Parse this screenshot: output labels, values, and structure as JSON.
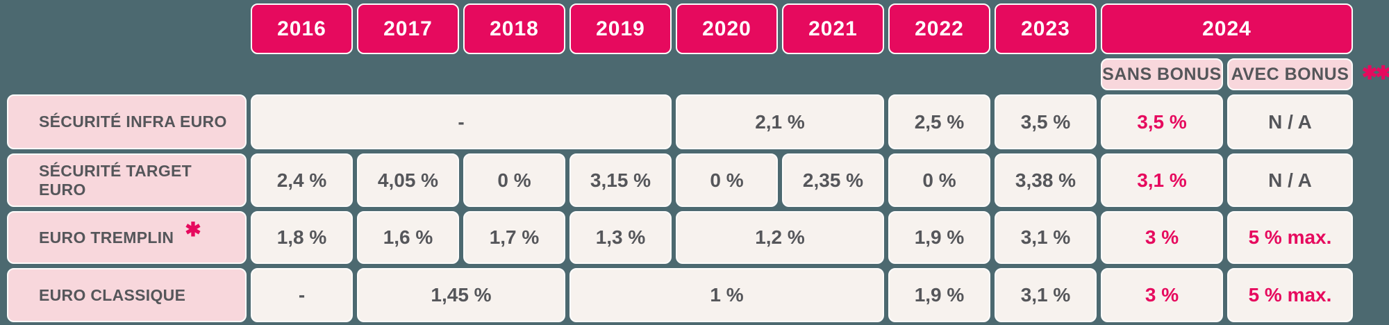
{
  "colors": {
    "background": "#4C6970",
    "accent_pink": "#E60A5E",
    "light_pink": "#F8D7DC",
    "cell_cream": "#F7F2EE",
    "text_dark": "#55565A",
    "header_text": "#FFFFFF"
  },
  "header": {
    "years": [
      "2016",
      "2017",
      "2018",
      "2019",
      "2020",
      "2021",
      "2022",
      "2023"
    ],
    "year_2024": "2024",
    "sub_columns": [
      {
        "label": "SANS BONUS"
      },
      {
        "label": "AVEC BONUS"
      }
    ],
    "footnote_marker": "✱✱"
  },
  "rows": [
    {
      "label": "SÉCURITÉ INFRA EURO",
      "asterisk": "",
      "cells": [
        {
          "value": "-"
        },
        {
          "value": "2,1 %"
        },
        {
          "value": "2,5 %"
        },
        {
          "value": "3,5 %"
        },
        {
          "value": "3,5 %"
        },
        {
          "value": "N / A"
        }
      ]
    },
    {
      "label": "SÉCURITÉ TARGET EURO",
      "asterisk": "",
      "cells": [
        {
          "value": "2,4 %"
        },
        {
          "value": "4,05 %"
        },
        {
          "value": "0 %"
        },
        {
          "value": "3,15 %"
        },
        {
          "value": "0 %"
        },
        {
          "value": "2,35 %"
        },
        {
          "value": "0 %"
        },
        {
          "value": "3,38 %"
        },
        {
          "value": "3,1 %"
        },
        {
          "value": "N / A"
        }
      ]
    },
    {
      "label": "EURO TREMPLIN",
      "asterisk": "✱",
      "cells": [
        {
          "value": "1,8 %"
        },
        {
          "value": "1,6 %"
        },
        {
          "value": "1,7 %"
        },
        {
          "value": "1,3 %"
        },
        {
          "value": "1,2 %"
        },
        {
          "value": "1,9 %"
        },
        {
          "value": "3,1 %"
        },
        {
          "value": "3 %"
        },
        {
          "value": "5 % max."
        }
      ]
    },
    {
      "label": "EURO CLASSIQUE",
      "asterisk": "",
      "cells": [
        {
          "value": "-"
        },
        {
          "value": "1,45 %"
        },
        {
          "value": "1 %"
        },
        {
          "value": "1,9 %"
        },
        {
          "value": "3,1 %"
        },
        {
          "value": "3 %"
        },
        {
          "value": "5 % max."
        }
      ]
    }
  ],
  "chart_data": {
    "type": "table",
    "columns": [
      "2016",
      "2017",
      "2018",
      "2019",
      "2020",
      "2021",
      "2022",
      "2023",
      "2024 SANS BONUS",
      "2024 AVEC BONUS"
    ],
    "rows": [
      {
        "label": "SÉCURITÉ INFRA EURO",
        "values": [
          "-",
          "-",
          "-",
          "-",
          "2,1 %",
          "2,1 %",
          "2,5 %",
          "3,5 %",
          "3,5 %",
          "N / A"
        ]
      },
      {
        "label": "SÉCURITÉ TARGET EURO",
        "values": [
          "2,4 %",
          "4,05 %",
          "0 %",
          "3,15 %",
          "0 %",
          "2,35 %",
          "0 %",
          "3,38 %",
          "3,1 %",
          "N / A"
        ]
      },
      {
        "label": "EURO TREMPLIN ✱",
        "values": [
          "1,8 %",
          "1,6 %",
          "1,7 %",
          "1,3 %",
          "1,2 %",
          "1,2 %",
          "1,9 %",
          "3,1 %",
          "3 %",
          "5 % max."
        ]
      },
      {
        "label": "EURO CLASSIQUE",
        "values": [
          "-",
          "1,45 %",
          "1,45 %",
          "1 %",
          "1 %",
          "1 %",
          "1,9 %",
          "3,1 %",
          "3 %",
          "5 % max."
        ]
      }
    ]
  }
}
